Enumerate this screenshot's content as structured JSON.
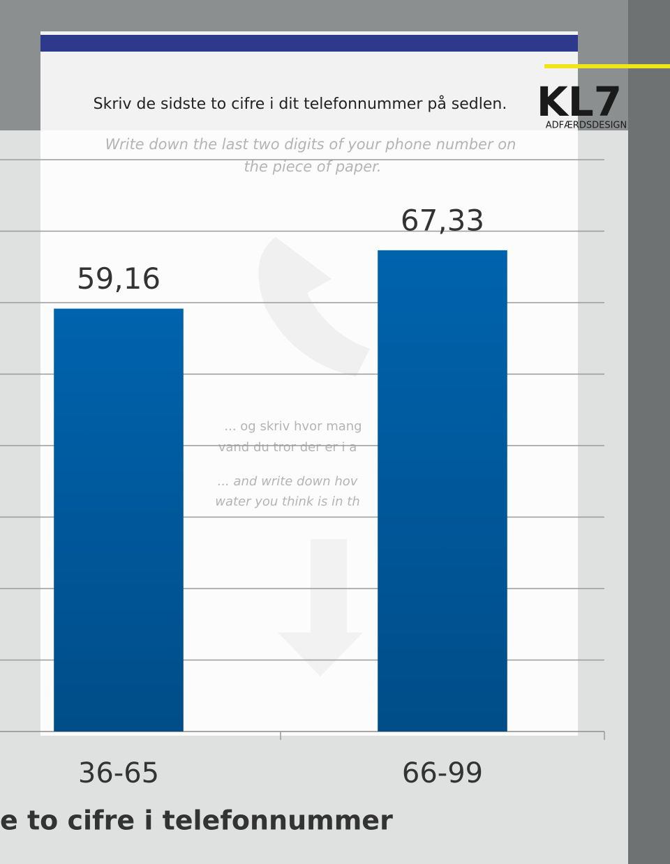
{
  "chart_data": {
    "type": "bar",
    "categories": [
      "36-65",
      "66-99"
    ],
    "values": [
      59.16,
      67.33
    ],
    "value_labels": [
      "59,16",
      "67,33"
    ],
    "color": "#005da0",
    "ylim": [
      0,
      80
    ],
    "yticks": [
      0,
      10,
      20,
      30,
      40,
      50,
      60,
      70,
      80
    ],
    "grid": true,
    "x_label": "e to cifre i telefonnummer"
  },
  "background": {
    "poster_heading": "Skriv de sidste to cifre i dit telefonnummer på sedlen.",
    "poster_heading_en_1": "Write down the last two digits of your phone number on",
    "poster_heading_en_2": "the piece of paper.",
    "poster_body_1": "... og skriv hvor mang",
    "poster_body_2": "vand du tror der er i a",
    "poster_body_en_1": "... and write down hov",
    "poster_body_en_2": "water you think is in th",
    "logo": "KL7",
    "logo_sub": "ADFÆRDSDESIGN"
  }
}
